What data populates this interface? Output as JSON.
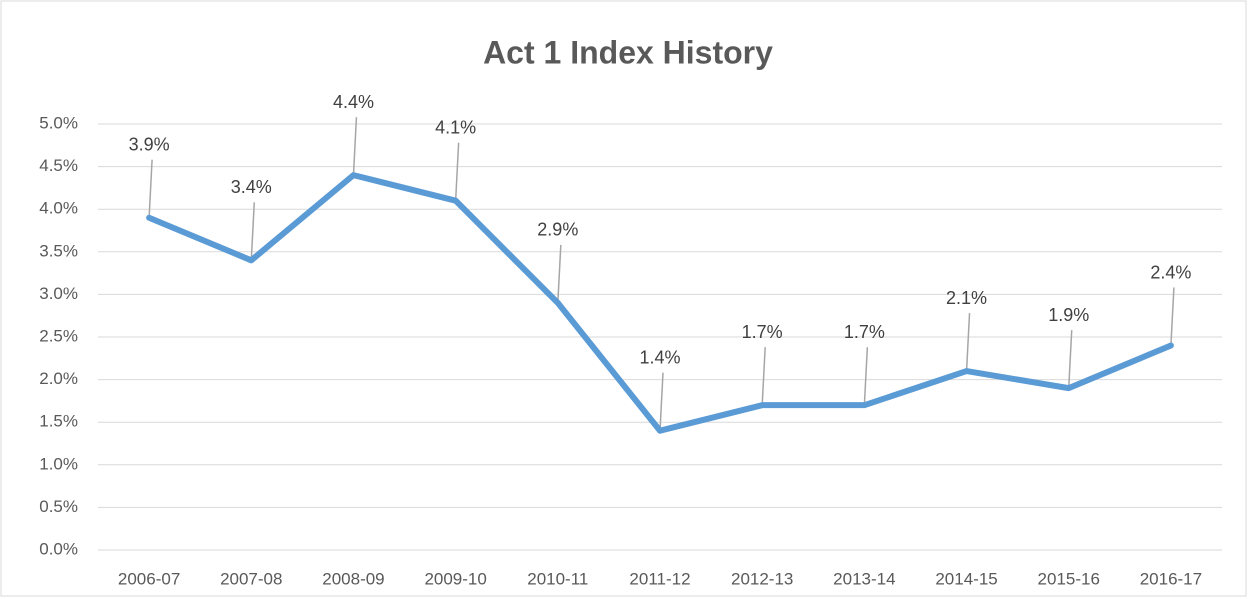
{
  "chart_data": {
    "type": "line",
    "title": "Act 1 Index History",
    "categories": [
      "2006-07",
      "2007-08",
      "2008-09",
      "2009-10",
      "2010-11",
      "2011-12",
      "2012-13",
      "2013-14",
      "2014-15",
      "2015-16",
      "2016-17"
    ],
    "series": [
      {
        "name": "Act 1 Index",
        "color": "#5b9bd5",
        "values": [
          3.9,
          3.4,
          4.4,
          4.1,
          2.9,
          1.4,
          1.7,
          1.7,
          2.1,
          1.9,
          2.4
        ],
        "value_labels": [
          "3.9%",
          "3.4%",
          "4.4%",
          "4.1%",
          "2.9%",
          "1.4%",
          "1.7%",
          "1.7%",
          "2.1%",
          "1.9%",
          "2.4%"
        ]
      }
    ],
    "ylim": [
      0,
      5
    ],
    "yticks": [
      {
        "value": 0,
        "label": "0.0%"
      },
      {
        "value": 0.5,
        "label": "0.5%"
      },
      {
        "value": 1,
        "label": "1.0%"
      },
      {
        "value": 1.5,
        "label": "1.5%"
      },
      {
        "value": 2,
        "label": "2.0%"
      },
      {
        "value": 2.5,
        "label": "2.5%"
      },
      {
        "value": 3,
        "label": "3.0%"
      },
      {
        "value": 3.5,
        "label": "3.5%"
      },
      {
        "value": 4,
        "label": "4.0%"
      },
      {
        "value": 4.5,
        "label": "4.5%"
      },
      {
        "value": 5,
        "label": "5.0%"
      }
    ],
    "grid": true
  }
}
